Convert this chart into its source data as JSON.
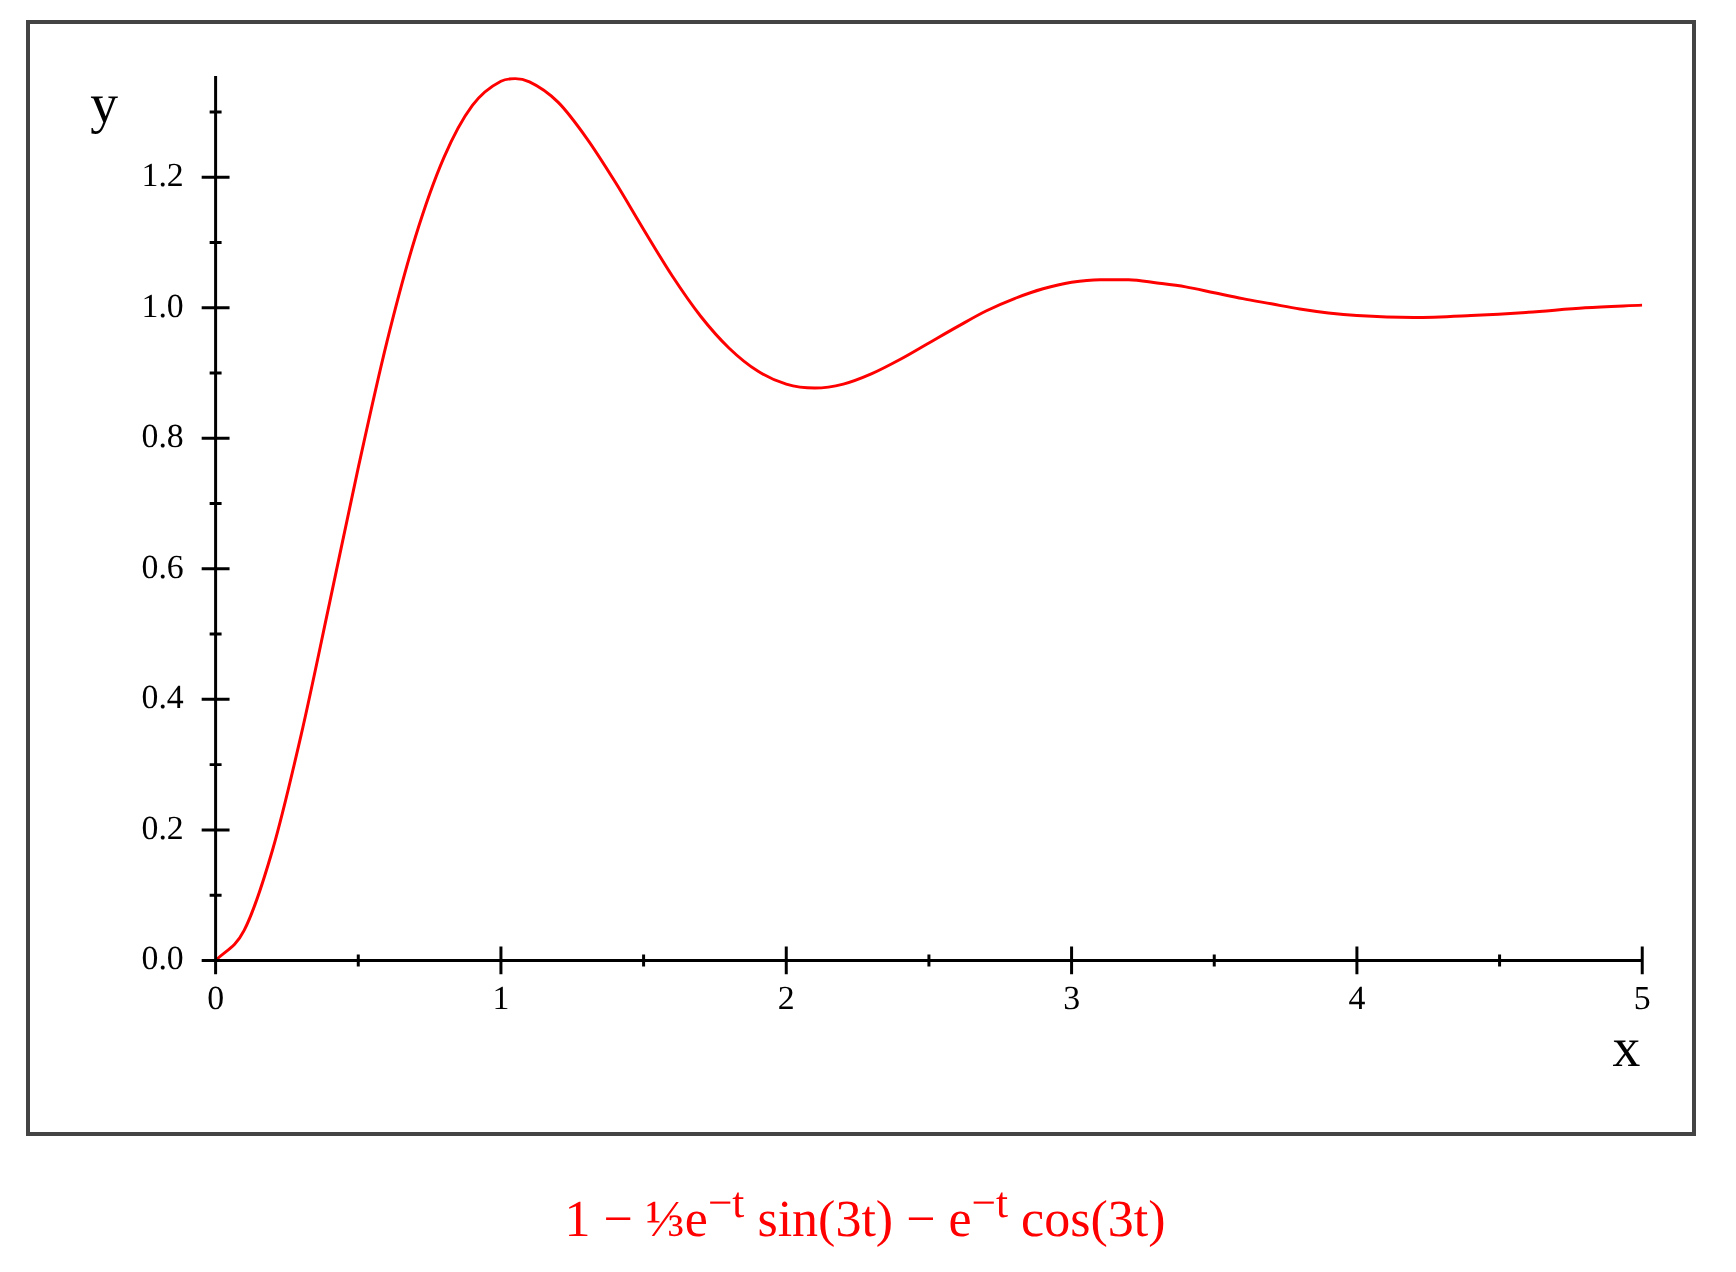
{
  "chart_data": {
    "type": "line",
    "xlabel": "x",
    "ylabel": "y",
    "x": [
      0,
      0.1,
      0.2,
      0.3,
      0.4,
      0.5,
      0.6,
      0.7,
      0.8,
      0.9,
      1.0,
      1.05,
      1.1,
      1.2,
      1.3,
      1.4,
      1.5,
      1.6,
      1.7,
      1.8,
      1.9,
      2.0,
      2.1,
      2.2,
      2.3,
      2.4,
      2.5,
      2.6,
      2.7,
      2.8,
      2.9,
      3.0,
      3.1,
      3.2,
      3.3,
      3.4,
      3.5,
      3.6,
      3.7,
      3.8,
      3.9,
      4.0,
      4.2,
      4.4,
      4.6,
      4.8,
      5.0
    ],
    "series": [
      {
        "name": "1 − ⅓e$^{−t}$ sin(3t) − e$^{−t}$ cos(3t)",
        "color": "#ff0000",
        "values": [
          0,
          0.046,
          0.17,
          0.346,
          0.549,
          0.755,
          0.947,
          1.108,
          1.23,
          1.31,
          1.347,
          1.351,
          1.346,
          1.315,
          1.26,
          1.193,
          1.12,
          1.049,
          0.987,
          0.938,
          0.903,
          0.883,
          0.877,
          0.883,
          0.899,
          0.921,
          0.946,
          0.971,
          0.995,
          1.014,
          1.029,
          1.039,
          1.043,
          1.043,
          1.038,
          1.032,
          1.023,
          1.014,
          1.006,
          0.998,
          0.992,
          0.988,
          0.985,
          0.988,
          0.993,
          1.0,
          1.004
        ]
      }
    ],
    "xlim": [
      0,
      5
    ],
    "ylim": [
      0,
      1.355
    ],
    "xticks": [
      0,
      {
        "value": 0.5,
        "label": null
      },
      1,
      {
        "value": 1.5,
        "label": null
      },
      2,
      {
        "value": 2.5,
        "label": null
      },
      3,
      {
        "value": 3.5,
        "label": null
      },
      4,
      {
        "value": 4.5,
        "label": null
      },
      5
    ],
    "yticks": [
      {
        "value": 0,
        "label": "0.0"
      },
      {
        "value": 0.1,
        "label": null
      },
      {
        "value": 0.2,
        "label": "0.2"
      },
      {
        "value": 0.3,
        "label": null
      },
      {
        "value": 0.4,
        "label": "0.4"
      },
      {
        "value": 0.5,
        "label": null
      },
      {
        "value": 0.6,
        "label": "0.6"
      },
      {
        "value": 0.7,
        "label": null
      },
      {
        "value": 0.8,
        "label": "0.8"
      },
      {
        "value": 0.9,
        "label": null
      },
      {
        "value": 1.0,
        "label": "1.0"
      },
      {
        "value": 1.1,
        "label": null
      },
      {
        "value": 1.2,
        "label": "1.2"
      },
      {
        "value": 1.3,
        "label": null
      }
    ],
    "legend": "bottom",
    "marker": "none"
  }
}
